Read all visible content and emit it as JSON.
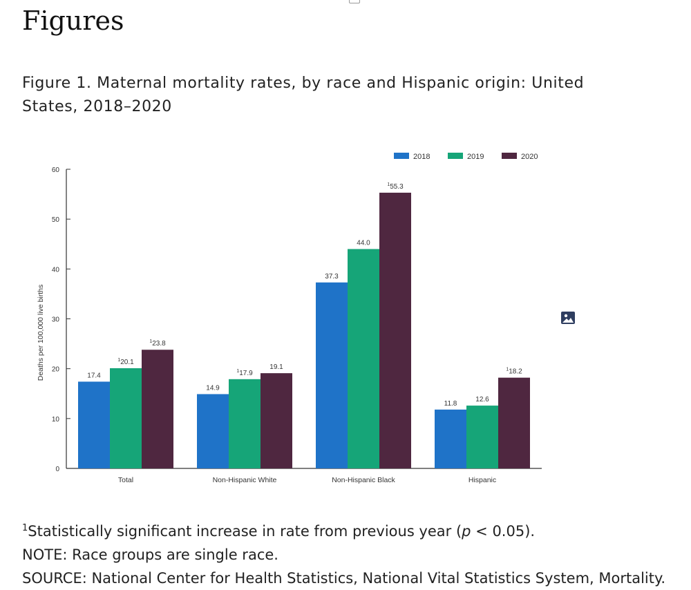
{
  "page": {
    "title": "Figures",
    "caption": "Figure 1. Maternal mortality rates, by race and Hispanic origin: United States, 2018–2020"
  },
  "notes": {
    "footnote_marker": "1",
    "footnote_before": "Statistically significant increase in rate from previous year (",
    "footnote_p": "p",
    "footnote_after": " < 0.05).",
    "note": "NOTE: Race groups are single race.",
    "source": "SOURCE: National Center for Health Statistics, National Vital Statistics System, Mortality."
  },
  "icons": {
    "image": "image-icon"
  },
  "colors": {
    "2018": "#1f73c8",
    "2019": "#16a578",
    "2020": "#4f2740",
    "axis": "#333333"
  },
  "chart_data": {
    "type": "bar",
    "title": "Figure 1. Maternal mortality rates, by race and Hispanic origin: United States, 2018–2020",
    "xlabel": "",
    "ylabel": "Deaths per 100,000 live births",
    "ylim": [
      0,
      60
    ],
    "yticks": [
      0,
      10,
      20,
      30,
      40,
      50,
      60
    ],
    "categories": [
      "Total",
      "Non-Hispanic White",
      "Non-Hispanic Black",
      "Hispanic"
    ],
    "legend_position": "top-right",
    "series": [
      {
        "name": "2018",
        "values": [
          17.4,
          14.9,
          37.3,
          11.8
        ],
        "labels": [
          "17.4",
          "14.9",
          "37.3",
          "11.8"
        ],
        "significant": [
          false,
          false,
          false,
          false
        ]
      },
      {
        "name": "2019",
        "values": [
          20.1,
          17.9,
          44.0,
          12.6
        ],
        "labels": [
          "20.1",
          "17.9",
          "44.0",
          "12.6"
        ],
        "significant": [
          true,
          true,
          false,
          false
        ]
      },
      {
        "name": "2020",
        "values": [
          23.8,
          19.1,
          55.3,
          18.2
        ],
        "labels": [
          "23.8",
          "19.1",
          "55.3",
          "18.2"
        ],
        "significant": [
          true,
          false,
          true,
          true
        ]
      }
    ],
    "significance_marker": "1"
  }
}
